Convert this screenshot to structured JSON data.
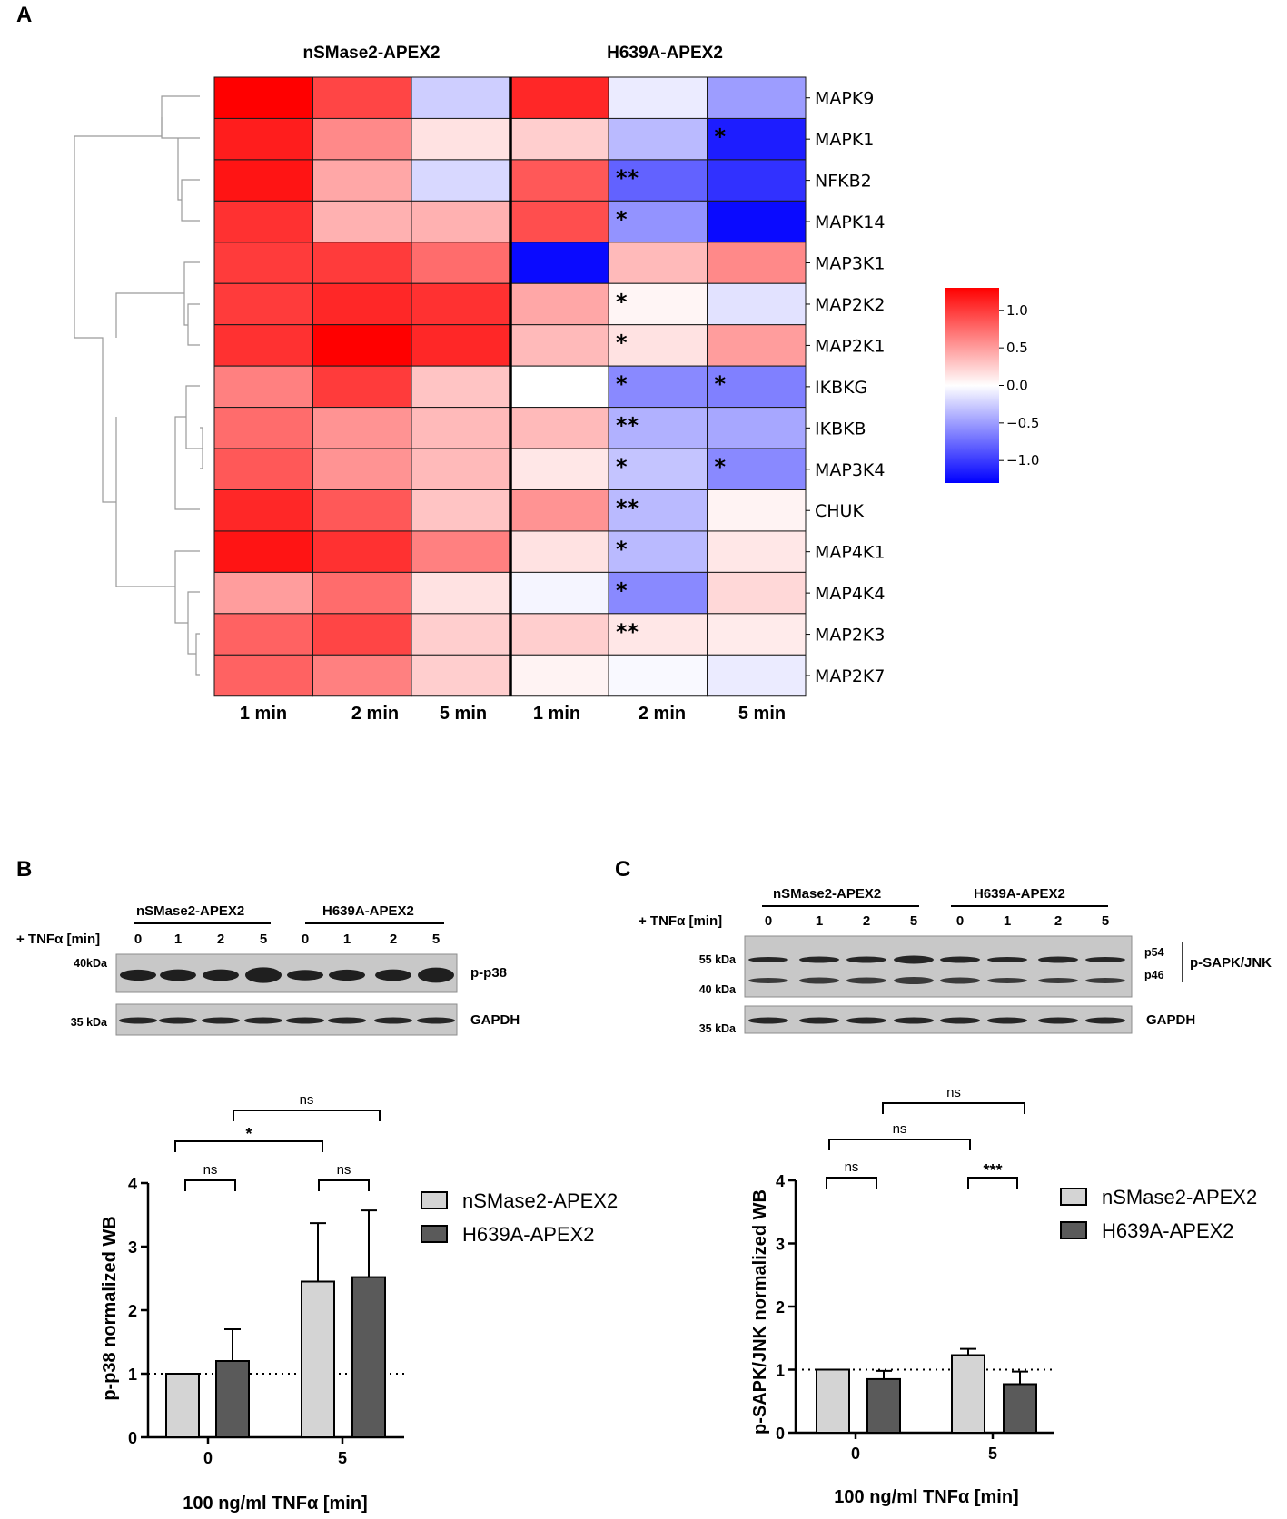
{
  "panelA": {
    "letter": "A",
    "group_labels": [
      "nSMase2-APEX2",
      "H639A-APEX2"
    ],
    "column_labels": [
      "1 min",
      "2 min",
      "5 min",
      "1 min",
      "2 min",
      "5 min"
    ],
    "colorbar": {
      "min": -1.3,
      "max": 1.3,
      "ticks": [
        "1.0",
        "0.5",
        "0.0",
        "−0.5",
        "−1.0"
      ],
      "tick_values": [
        1.0,
        0.5,
        0.0,
        -0.5,
        -1.0
      ]
    }
  },
  "chart_data": [
    {
      "type": "heatmap",
      "title": "",
      "rows": [
        "MAPK9",
        "MAPK1",
        "NFKB2",
        "MAPK14",
        "MAP3K1",
        "MAP2K2",
        "MAP2K1",
        "IKBKG",
        "IKBKB",
        "MAP3K4",
        "CHUK",
        "MAP4K1",
        "MAP4K4",
        "MAP2K3",
        "MAP2K7"
      ],
      "columns": [
        "nSMase2-APEX2 1 min",
        "nSMase2-APEX2 2 min",
        "nSMase2-APEX2 5 min",
        "H639A-APEX2 1 min",
        "H639A-APEX2 2 min",
        "H639A-APEX2 5 min"
      ],
      "values": [
        [
          1.3,
          0.95,
          -0.25,
          1.1,
          -0.1,
          -0.5
        ],
        [
          1.15,
          0.6,
          0.15,
          0.25,
          -0.35,
          -1.15
        ],
        [
          1.2,
          0.45,
          -0.2,
          0.85,
          -0.8,
          -1.05
        ],
        [
          1.05,
          0.4,
          0.4,
          0.9,
          -0.55,
          -1.25
        ],
        [
          1.0,
          1.0,
          0.75,
          -1.25,
          0.35,
          0.6
        ],
        [
          1.0,
          1.1,
          1.05,
          0.45,
          0.05,
          -0.15
        ],
        [
          1.05,
          1.3,
          1.1,
          0.35,
          0.15,
          0.5
        ],
        [
          0.65,
          1.0,
          0.3,
          0.0,
          -0.6,
          -0.65
        ],
        [
          0.75,
          0.55,
          0.35,
          0.35,
          -0.4,
          -0.45
        ],
        [
          0.85,
          0.55,
          0.35,
          0.12,
          -0.3,
          -0.6
        ],
        [
          1.1,
          0.85,
          0.3,
          0.55,
          -0.35,
          0.06
        ],
        [
          1.2,
          1.05,
          0.65,
          0.15,
          -0.35,
          0.12
        ],
        [
          0.5,
          0.75,
          0.15,
          -0.05,
          -0.6,
          0.2
        ],
        [
          0.8,
          0.95,
          0.25,
          0.25,
          0.12,
          0.1
        ],
        [
          0.8,
          0.65,
          0.25,
          0.06,
          -0.03,
          -0.1
        ]
      ],
      "significance": [
        [
          "",
          "",
          "",
          "",
          "",
          ""
        ],
        [
          "",
          "",
          "",
          "",
          "",
          "*"
        ],
        [
          "",
          "",
          "",
          "",
          "**",
          ""
        ],
        [
          "",
          "",
          "",
          "",
          "*",
          ""
        ],
        [
          "",
          "",
          "",
          "",
          "",
          ""
        ],
        [
          "",
          "",
          "",
          "",
          "*",
          ""
        ],
        [
          "",
          "",
          "",
          "",
          "*",
          ""
        ],
        [
          "",
          "",
          "",
          "",
          "*",
          "*"
        ],
        [
          "",
          "",
          "",
          "",
          "**",
          ""
        ],
        [
          "",
          "",
          "",
          "",
          "*",
          "*"
        ],
        [
          "",
          "",
          "",
          "",
          "**",
          ""
        ],
        [
          "",
          "",
          "",
          "",
          "*",
          ""
        ],
        [
          "",
          "",
          "",
          "",
          "*",
          ""
        ],
        [
          "",
          "",
          "",
          "",
          "**",
          ""
        ],
        [
          "",
          "",
          "",
          "",
          "",
          ""
        ]
      ],
      "colormap": "bwr",
      "vmin": -1.3,
      "vmax": 1.3
    },
    {
      "type": "bar",
      "title": "",
      "categories": [
        "0",
        "5"
      ],
      "series": [
        {
          "name": "nSMase2-APEX2",
          "values": [
            1.0,
            2.45
          ],
          "sd": [
            0,
            0.92
          ]
        },
        {
          "name": "H639A-APEX2",
          "values": [
            1.2,
            2.52
          ],
          "sd": [
            0.5,
            1.05
          ]
        }
      ],
      "xlabel": "100 ng/ml TNFα [min]",
      "ylabel": "p-p38 normalized WB",
      "ylim": [
        0,
        4
      ],
      "yticks": [
        0,
        1,
        2,
        3,
        4
      ],
      "reference_line": 1,
      "comparisons": [
        "ns",
        "ns",
        "*",
        "ns"
      ]
    },
    {
      "type": "bar",
      "title": "",
      "categories": [
        "0",
        "5"
      ],
      "series": [
        {
          "name": "nSMase2-APEX2",
          "values": [
            1.0,
            1.23
          ],
          "sd": [
            0,
            0.1
          ]
        },
        {
          "name": "H639A-APEX2",
          "values": [
            0.85,
            0.77
          ],
          "sd": [
            0.13,
            0.2
          ]
        }
      ],
      "xlabel": "100 ng/ml TNFα [min]",
      "ylabel": "p-SAPK/JNK normalized WB",
      "ylim": [
        0,
        4
      ],
      "yticks": [
        0,
        1,
        2,
        3,
        4
      ],
      "reference_line": 1,
      "comparisons": [
        "ns",
        "***",
        "ns",
        "ns"
      ]
    }
  ],
  "panelB": {
    "letter": "B",
    "tnf_label": "+ TNFα  [min]",
    "groups": [
      "nSMase2-APEX2",
      "H639A-APEX2"
    ],
    "lanes": [
      "0",
      "1",
      "2",
      "5",
      "0",
      "1",
      "2",
      "5"
    ],
    "mw_top": "40kDa",
    "mw_bottom": "35 kDa",
    "blot_top": "p-p38",
    "blot_bottom": "GAPDH",
    "band_intensity": [
      0.55,
      0.6,
      0.6,
      0.95,
      0.5,
      0.55,
      0.6,
      0.9
    ],
    "legend": [
      "nSMase2-APEX2",
      "H639A-APEX2"
    ],
    "ylabel": "p-p38 normalized WB",
    "xlabel": "100 ng/ml TNFα [min]",
    "yticks": [
      "0",
      "1",
      "2",
      "3",
      "4"
    ],
    "xticks": [
      "0",
      "5"
    ],
    "sig": {
      "g0": "ns",
      "g5": "ns",
      "cross_a": "*",
      "cross_b": "ns"
    },
    "colors": {
      "light": "#d4d4d4",
      "dark": "#5a5a5a"
    }
  },
  "panelC": {
    "letter": "C",
    "tnf_label": "+ TNFα  [min]",
    "groups": [
      "nSMase2-APEX2",
      "H639A-APEX2"
    ],
    "lanes": [
      "0",
      "1",
      "2",
      "5",
      "0",
      "1",
      "2",
      "5"
    ],
    "mw_top": "55 kDa",
    "mw_mid": "40 kDa",
    "mw_bottom": "35 kDa",
    "p54": "p54",
    "p46": "p46",
    "blot_top": "p-SAPK/JNK",
    "blot_bottom": "GAPDH",
    "legend": [
      "nSMase2-APEX2",
      "H639A-APEX2"
    ],
    "ylabel": "p-SAPK/JNK normalized WB",
    "xlabel": "100 ng/ml TNFα [min]",
    "yticks": [
      "0",
      "1",
      "2",
      "3",
      "4"
    ],
    "xticks": [
      "0",
      "5"
    ],
    "sig": {
      "g0": "ns",
      "g5": "***",
      "cross_a": "ns",
      "cross_b": "ns"
    }
  }
}
